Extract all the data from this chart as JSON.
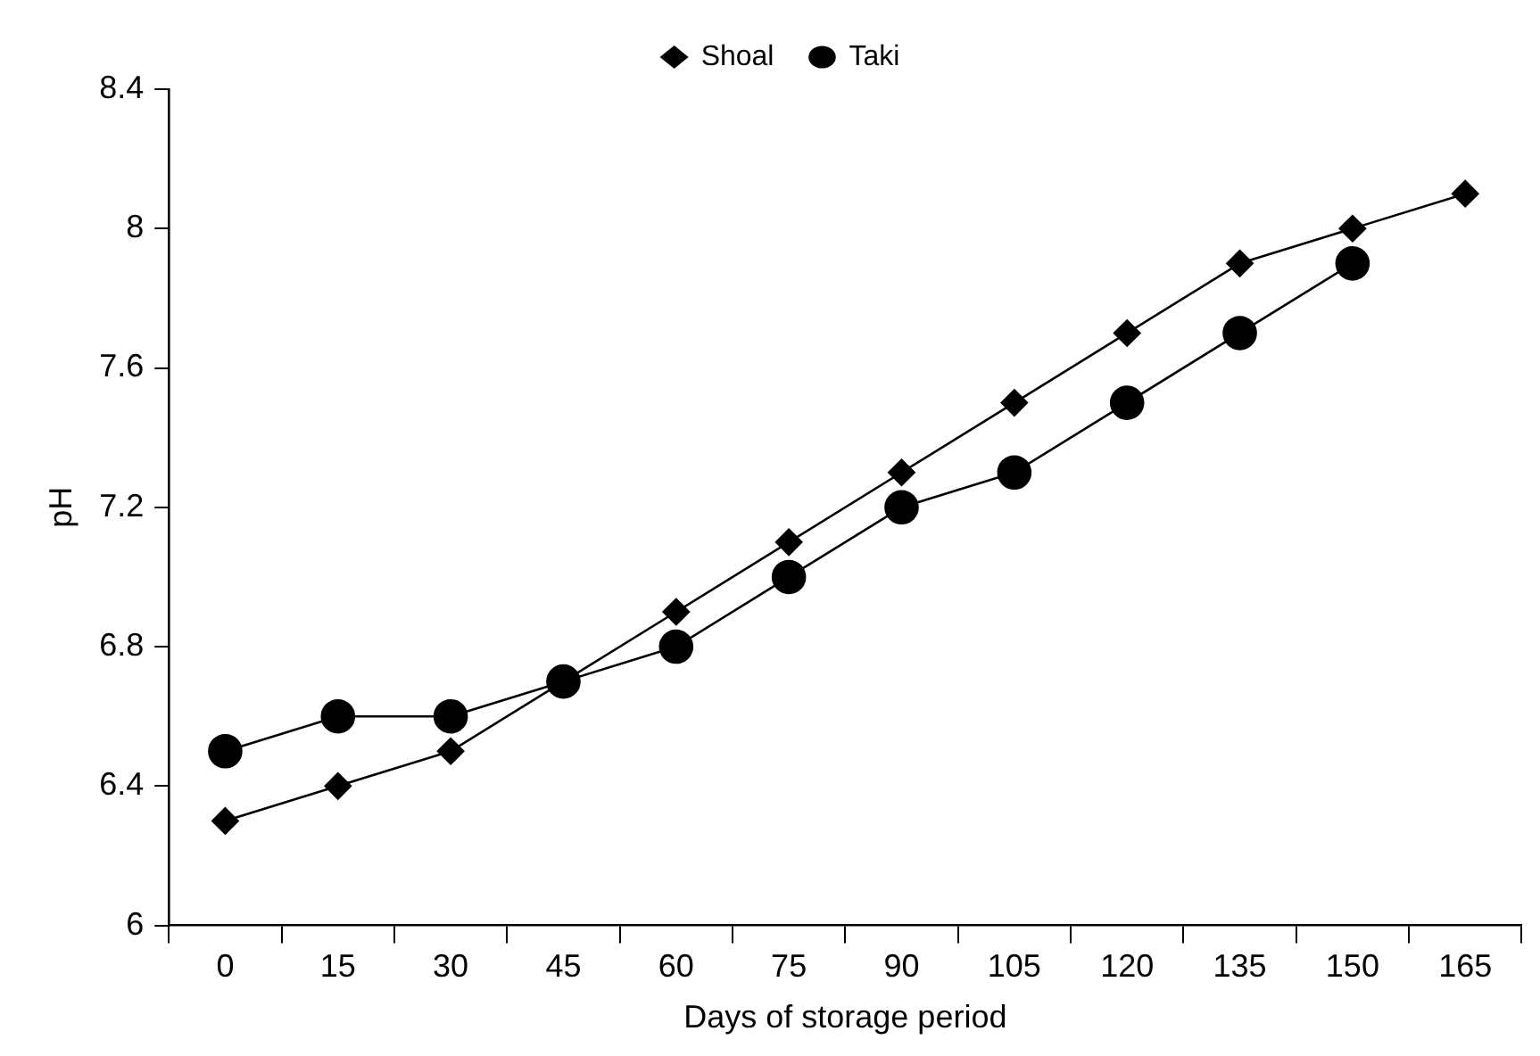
{
  "chart_data": {
    "type": "line",
    "xlabel": "Days of storage period",
    "ylabel": "pH",
    "categories": [
      "0",
      "15",
      "30",
      "45",
      "60",
      "75",
      "90",
      "105",
      "120",
      "135",
      "150",
      "165"
    ],
    "series": [
      {
        "name": "Shoal",
        "color": "#000000",
        "marker": "diamond",
        "values": [
          6.3,
          6.4,
          6.5,
          6.7,
          6.9,
          7.1,
          7.3,
          7.5,
          7.7,
          7.9,
          8.0,
          8.1
        ]
      },
      {
        "name": "Taki",
        "color": "#000000",
        "marker": "circle",
        "values": [
          6.5,
          6.6,
          6.6,
          6.7,
          6.8,
          7.0,
          7.2,
          7.3,
          7.5,
          7.7,
          7.9,
          null
        ]
      }
    ],
    "ylim": [
      6,
      8.4
    ],
    "yticks": [
      6,
      6.4,
      6.8,
      7.2,
      7.6,
      8,
      8.4
    ],
    "grid": false,
    "legend": "top",
    "line_style": "solid"
  }
}
